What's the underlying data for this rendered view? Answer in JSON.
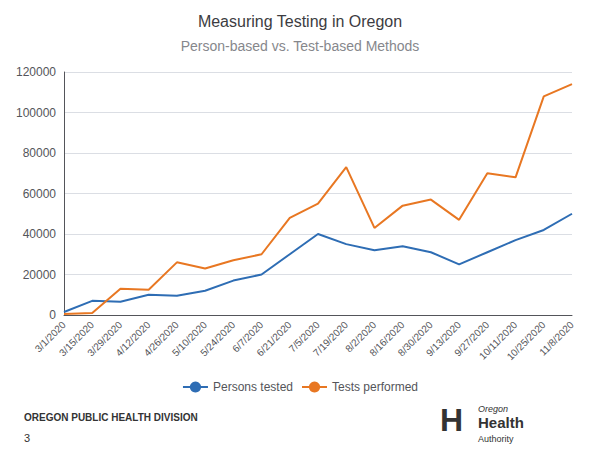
{
  "chart_data": {
    "type": "line",
    "title": "Measuring Testing in Oregon",
    "subtitle": "Person-based vs. Test-based Methods",
    "categories": [
      "3/1/2020",
      "3/15/2020",
      "3/29/2020",
      "4/12/2020",
      "4/26/2020",
      "5/10/2020",
      "5/24/2020",
      "6/7/2020",
      "6/21/2020",
      "7/5/2020",
      "7/19/2020",
      "8/2/2020",
      "8/16/2020",
      "8/30/2020",
      "9/13/2020",
      "9/27/2020",
      "10/11/2020",
      "10/25/2020",
      "11/8/2020"
    ],
    "series": [
      {
        "name": "Persons tested",
        "color": "#2E6DB4",
        "values": [
          1500,
          7000,
          6500,
          10000,
          9500,
          12000,
          17000,
          20000,
          30000,
          40000,
          35000,
          32000,
          34000,
          31000,
          25000,
          31000,
          37000,
          42000,
          50000
        ]
      },
      {
        "name": "Tests performed",
        "color": "#E87722",
        "values": [
          500,
          1000,
          13000,
          12500,
          26000,
          23000,
          27000,
          30000,
          48000,
          55000,
          73000,
          43000,
          54000,
          57000,
          47000,
          70000,
          68000,
          108000,
          114000
        ]
      }
    ],
    "ylim": [
      0,
      120000
    ],
    "yticks": [
      0,
      20000,
      40000,
      60000,
      80000,
      100000,
      120000
    ],
    "grid": true,
    "legend": "bottom",
    "annotations": [
      "OREGON PUBLIC HEALTH DIVISION",
      "3",
      "H",
      "Oregon",
      "Health",
      "Authority"
    ]
  }
}
